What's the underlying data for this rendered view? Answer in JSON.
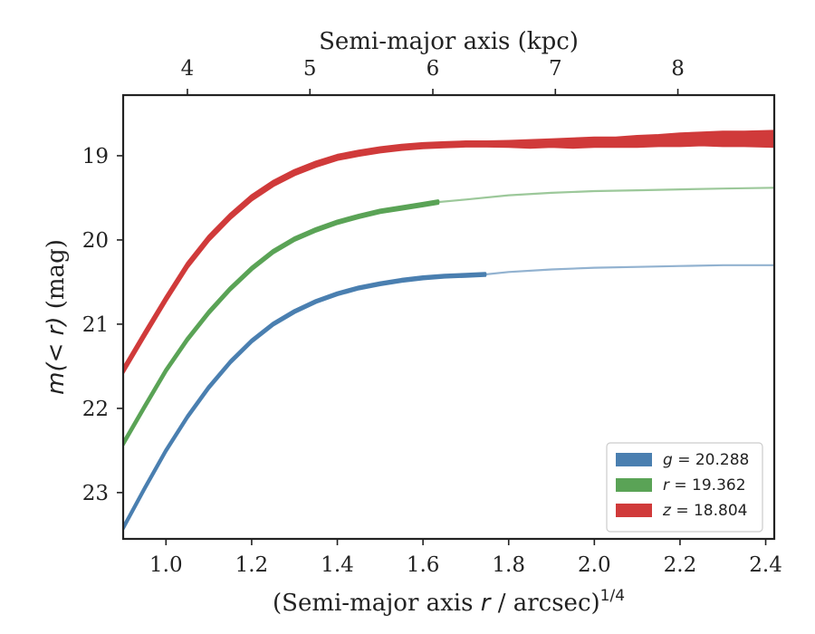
{
  "chart_data": {
    "type": "line",
    "xlabel": "(Semi-major axis r / arcsec)^1/4",
    "xlabel_parts": {
      "pre": "(Semi-major axis ",
      "var": "r",
      "post": " / arcsec)",
      "sup": "1/4"
    },
    "ylabel": "m(<r) (mag)",
    "ylabel_parts": {
      "var": "m(< r)",
      "unit": " (mag)"
    },
    "top_xlabel": "Semi-major axis (kpc)",
    "xlim": [
      0.9,
      2.42
    ],
    "ylim": [
      23.55,
      18.28
    ],
    "y_inverted": true,
    "x_ticks": [
      1.0,
      1.2,
      1.4,
      1.6,
      1.8,
      2.0,
      2.2,
      2.4
    ],
    "x_tick_labels": [
      "1.0",
      "1.2",
      "1.4",
      "1.6",
      "1.8",
      "2.0",
      "2.2",
      "2.4"
    ],
    "y_ticks": [
      19,
      20,
      21,
      22,
      23
    ],
    "y_tick_labels": [
      "19",
      "20",
      "21",
      "22",
      "23"
    ],
    "top_ticks": [
      4,
      5,
      6,
      7,
      8
    ],
    "top_tick_labels": [
      "4",
      "5",
      "6",
      "7",
      "8"
    ],
    "top_tick_x_positions": [
      1.05,
      1.336,
      1.623,
      1.909,
      2.195
    ],
    "grid": false,
    "legend_position": "bottom-right",
    "series": [
      {
        "name": "g = 20.288",
        "legend_var": "g",
        "legend_value": "= 20.288",
        "color": "#4a7fb0",
        "x": [
          0.9,
          0.95,
          1.0,
          1.05,
          1.1,
          1.15,
          1.2,
          1.25,
          1.3,
          1.35,
          1.4,
          1.45,
          1.5,
          1.55,
          1.6,
          1.65,
          1.7,
          1.745,
          1.8,
          1.9,
          2.0,
          2.1,
          2.2,
          2.3,
          2.42
        ],
        "y": [
          23.42,
          22.95,
          22.5,
          22.1,
          21.75,
          21.45,
          21.2,
          21.0,
          20.85,
          20.73,
          20.64,
          20.57,
          20.52,
          20.48,
          20.45,
          20.43,
          20.42,
          20.41,
          20.38,
          20.35,
          20.33,
          20.32,
          20.31,
          20.3,
          20.3
        ],
        "solid_until_x": 1.745,
        "band_width": 0.012
      },
      {
        "name": "r = 19.362",
        "legend_var": "r",
        "legend_value": "= 19.362",
        "color": "#5aa356",
        "x": [
          0.9,
          0.95,
          1.0,
          1.05,
          1.1,
          1.15,
          1.2,
          1.25,
          1.3,
          1.35,
          1.4,
          1.45,
          1.5,
          1.55,
          1.6,
          1.635,
          1.7,
          1.8,
          1.9,
          2.0,
          2.1,
          2.2,
          2.3,
          2.42
        ],
        "y": [
          22.42,
          21.98,
          21.55,
          21.18,
          20.86,
          20.58,
          20.34,
          20.14,
          19.99,
          19.88,
          19.79,
          19.72,
          19.66,
          19.62,
          19.58,
          19.55,
          19.52,
          19.47,
          19.44,
          19.42,
          19.41,
          19.4,
          19.39,
          19.38
        ],
        "solid_until_x": 1.635,
        "band_width": 0.015
      },
      {
        "name": "z = 18.804",
        "legend_var": "z",
        "legend_value": "= 18.804",
        "color": "#d03a3a",
        "x": [
          0.9,
          0.95,
          1.0,
          1.05,
          1.1,
          1.15,
          1.2,
          1.25,
          1.3,
          1.35,
          1.4,
          1.45,
          1.5,
          1.55,
          1.6,
          1.65,
          1.7,
          1.75,
          1.8,
          1.85,
          1.9,
          1.95,
          2.0,
          2.05,
          2.1,
          2.15,
          2.2,
          2.25,
          2.3,
          2.35,
          2.42
        ],
        "y": [
          21.55,
          21.12,
          20.7,
          20.3,
          19.98,
          19.72,
          19.5,
          19.33,
          19.2,
          19.1,
          19.02,
          18.97,
          18.93,
          18.9,
          18.88,
          18.87,
          18.86,
          18.86,
          18.86,
          18.86,
          18.85,
          18.85,
          18.84,
          18.84,
          18.83,
          18.82,
          18.81,
          18.8,
          18.8,
          18.8,
          18.8
        ],
        "solid_until_x": 2.42,
        "band_width": [
          0.025,
          0.025,
          0.025,
          0.025,
          0.025,
          0.025,
          0.025,
          0.025,
          0.025,
          0.025,
          0.025,
          0.025,
          0.025,
          0.025,
          0.025,
          0.025,
          0.025,
          0.025,
          0.03,
          0.04,
          0.04,
          0.05,
          0.05,
          0.05,
          0.06,
          0.06,
          0.07,
          0.07,
          0.08,
          0.08,
          0.09
        ]
      }
    ]
  }
}
